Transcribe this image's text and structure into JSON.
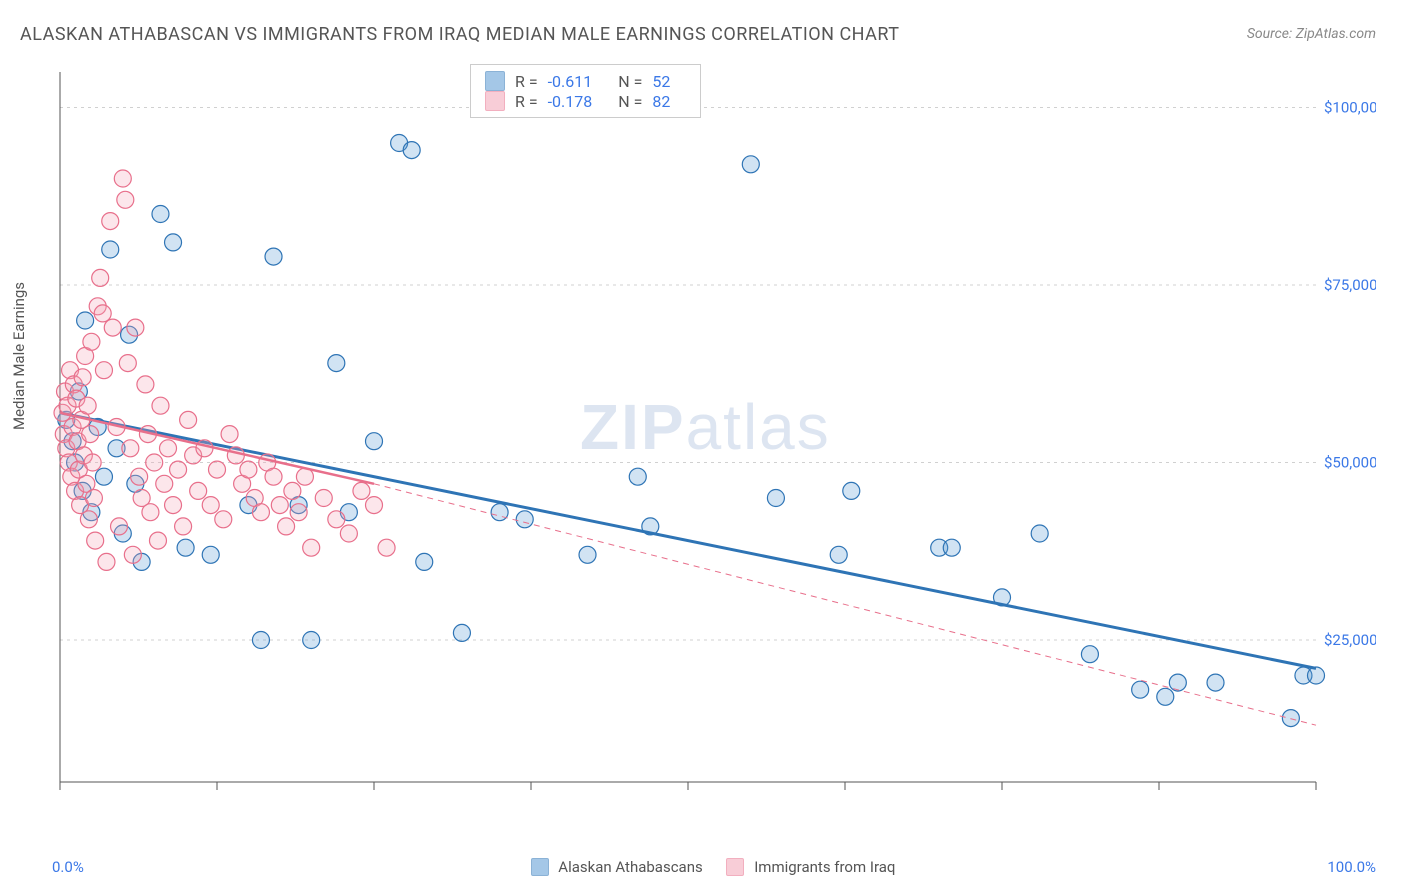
{
  "title": "ALASKAN ATHABASCAN VS IMMIGRANTS FROM IRAQ MEDIAN MALE EARNINGS CORRELATION CHART",
  "source": "Source: ZipAtlas.com",
  "y_label": "Median Male Earnings",
  "watermark_a": "ZIP",
  "watermark_b": "atlas",
  "chart": {
    "type": "scatter",
    "xlim": [
      0,
      100
    ],
    "ylim": [
      5000,
      105000
    ],
    "x_tick_labels": {
      "0": "0.0%",
      "100": "100.0%"
    },
    "y_ticks": [
      25000,
      50000,
      75000,
      100000
    ],
    "y_tick_labels": [
      "$25,000",
      "$50,000",
      "$75,000",
      "$100,000"
    ],
    "grid_color": "#d0d0d0",
    "axis_color": "#555",
    "tick_label_color": "#3b78e7",
    "background_color": "#ffffff",
    "marker_radius": 8.5,
    "marker_stroke_width": 1.2,
    "marker_fill_opacity": 0.28,
    "series": [
      {
        "name": "Alaskan Athabascans",
        "color": "#5b9bd5",
        "stroke": "#2e74b5",
        "R": "-0.611",
        "N": "52",
        "trend": {
          "x1": 0,
          "y1": 57000,
          "x2": 100,
          "y2": 21000,
          "width": 3,
          "dash": "none"
        },
        "points": [
          [
            0.5,
            56000
          ],
          [
            1,
            53000
          ],
          [
            1.2,
            50000
          ],
          [
            1.5,
            60000
          ],
          [
            1.8,
            46000
          ],
          [
            2,
            70000
          ],
          [
            2.5,
            43000
          ],
          [
            3,
            55000
          ],
          [
            3.5,
            48000
          ],
          [
            4,
            80000
          ],
          [
            4.5,
            52000
          ],
          [
            5,
            40000
          ],
          [
            5.5,
            68000
          ],
          [
            6,
            47000
          ],
          [
            6.5,
            36000
          ],
          [
            8,
            85000
          ],
          [
            9,
            81000
          ],
          [
            10,
            38000
          ],
          [
            12,
            37000
          ],
          [
            15,
            44000
          ],
          [
            16,
            25000
          ],
          [
            17,
            79000
          ],
          [
            19,
            44000
          ],
          [
            20,
            25000
          ],
          [
            22,
            64000
          ],
          [
            23,
            43000
          ],
          [
            25,
            53000
          ],
          [
            27,
            95000
          ],
          [
            28,
            94000
          ],
          [
            29,
            36000
          ],
          [
            32,
            26000
          ],
          [
            35,
            43000
          ],
          [
            37,
            42000
          ],
          [
            42,
            37000
          ],
          [
            46,
            48000
          ],
          [
            47,
            41000
          ],
          [
            55,
            92000
          ],
          [
            57,
            45000
          ],
          [
            62,
            37000
          ],
          [
            63,
            46000
          ],
          [
            70,
            38000
          ],
          [
            71,
            38000
          ],
          [
            75,
            31000
          ],
          [
            78,
            40000
          ],
          [
            82,
            23000
          ],
          [
            86,
            18000
          ],
          [
            88,
            17000
          ],
          [
            89,
            19000
          ],
          [
            92,
            19000
          ],
          [
            98,
            14000
          ],
          [
            99,
            20000
          ],
          [
            100,
            20000
          ]
        ]
      },
      {
        "name": "Immigrants from Iraq",
        "color": "#f4a6b7",
        "stroke": "#e86f8b",
        "R": "-0.178",
        "N": "82",
        "trend": {
          "x1": 0,
          "y1": 57000,
          "x2": 25,
          "y2": 47000,
          "width": 2.5,
          "dash": "none"
        },
        "trend_ext": {
          "x1": 25,
          "y1": 47000,
          "x2": 100,
          "y2": 13000,
          "width": 1,
          "dash": "6,5"
        },
        "points": [
          [
            0.2,
            57000
          ],
          [
            0.3,
            54000
          ],
          [
            0.4,
            60000
          ],
          [
            0.5,
            52000
          ],
          [
            0.6,
            58000
          ],
          [
            0.7,
            50000
          ],
          [
            0.8,
            63000
          ],
          [
            0.9,
            48000
          ],
          [
            1,
            55000
          ],
          [
            1.1,
            61000
          ],
          [
            1.2,
            46000
          ],
          [
            1.3,
            59000
          ],
          [
            1.4,
            53000
          ],
          [
            1.5,
            49000
          ],
          [
            1.6,
            44000
          ],
          [
            1.7,
            56000
          ],
          [
            1.8,
            62000
          ],
          [
            1.9,
            51000
          ],
          [
            2,
            65000
          ],
          [
            2.1,
            47000
          ],
          [
            2.2,
            58000
          ],
          [
            2.3,
            42000
          ],
          [
            2.4,
            54000
          ],
          [
            2.5,
            67000
          ],
          [
            2.6,
            50000
          ],
          [
            2.7,
            45000
          ],
          [
            2.8,
            39000
          ],
          [
            3,
            72000
          ],
          [
            3.2,
            76000
          ],
          [
            3.4,
            71000
          ],
          [
            3.5,
            63000
          ],
          [
            3.7,
            36000
          ],
          [
            4,
            84000
          ],
          [
            4.2,
            69000
          ],
          [
            4.5,
            55000
          ],
          [
            4.7,
            41000
          ],
          [
            5,
            90000
          ],
          [
            5.2,
            87000
          ],
          [
            5.4,
            64000
          ],
          [
            5.6,
            52000
          ],
          [
            5.8,
            37000
          ],
          [
            6,
            69000
          ],
          [
            6.3,
            48000
          ],
          [
            6.5,
            45000
          ],
          [
            6.8,
            61000
          ],
          [
            7,
            54000
          ],
          [
            7.2,
            43000
          ],
          [
            7.5,
            50000
          ],
          [
            7.8,
            39000
          ],
          [
            8,
            58000
          ],
          [
            8.3,
            47000
          ],
          [
            8.6,
            52000
          ],
          [
            9,
            44000
          ],
          [
            9.4,
            49000
          ],
          [
            9.8,
            41000
          ],
          [
            10.2,
            56000
          ],
          [
            10.6,
            51000
          ],
          [
            11,
            46000
          ],
          [
            11.5,
            52000
          ],
          [
            12,
            44000
          ],
          [
            12.5,
            49000
          ],
          [
            13,
            42000
          ],
          [
            13.5,
            54000
          ],
          [
            14,
            51000
          ],
          [
            14.5,
            47000
          ],
          [
            15,
            49000
          ],
          [
            15.5,
            45000
          ],
          [
            16,
            43000
          ],
          [
            16.5,
            50000
          ],
          [
            17,
            48000
          ],
          [
            17.5,
            44000
          ],
          [
            18,
            41000
          ],
          [
            18.5,
            46000
          ],
          [
            19,
            43000
          ],
          [
            19.5,
            48000
          ],
          [
            20,
            38000
          ],
          [
            21,
            45000
          ],
          [
            22,
            42000
          ],
          [
            23,
            40000
          ],
          [
            24,
            46000
          ],
          [
            25,
            44000
          ],
          [
            26,
            38000
          ]
        ]
      }
    ],
    "legend": {
      "series_labels": [
        "Alaskan Athabascans",
        "Immigrants from Iraq"
      ],
      "r_label": "R =",
      "n_label": "N ="
    }
  }
}
